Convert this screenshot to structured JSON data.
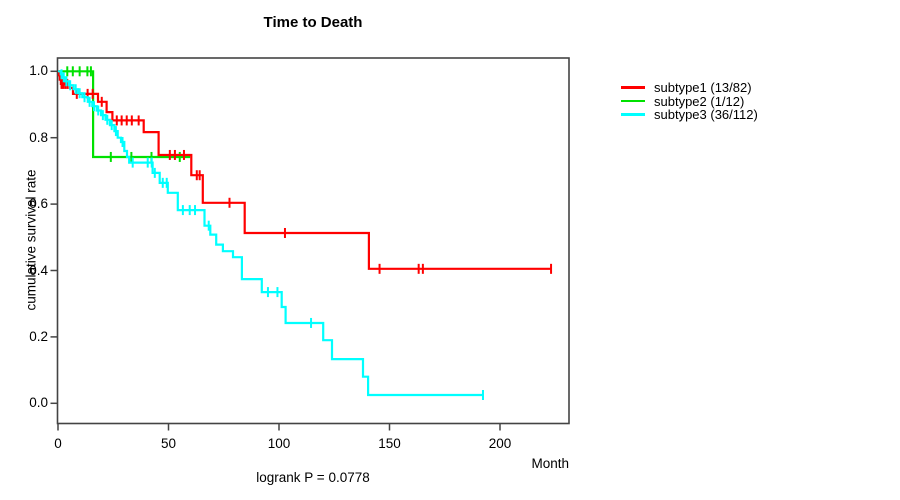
{
  "title": "Time to Death",
  "footer": "logrank P = 0.0778",
  "axes": {
    "x": {
      "label": "Month",
      "ticks": [
        "0",
        "50",
        "100",
        "150",
        "200"
      ]
    },
    "y": {
      "label": "cumulative survival rate",
      "ticks": [
        "1.0",
        "0.8",
        "0.6",
        "0.4",
        "0.2",
        "0.0"
      ]
    }
  },
  "legend": [
    {
      "label": "subtype1 (13/82)",
      "color": "#FF0000"
    },
    {
      "label": "subtype2 (1/12)",
      "color": "#00E100"
    },
    {
      "label": "subtype3 (36/112)",
      "color": "#00FFFF"
    }
  ],
  "frame_color": "#444444",
  "chart_data": {
    "type": "line",
    "subtype": "kaplan-meier-step",
    "title": "Time to Death",
    "xlabel": "Month",
    "ylabel": "cumulative survival rate",
    "xlim": [
      0,
      231
    ],
    "ylim": [
      0,
      1.04
    ],
    "x_ticks": [
      0,
      50,
      100,
      150,
      200
    ],
    "y_ticks": [
      1.0,
      0.8,
      0.6,
      0.4,
      0.2,
      0.0
    ],
    "grid": false,
    "legend_position": "right-outside",
    "series": [
      {
        "name": "subtype2 (1/12)",
        "color": "#00E100",
        "draw_order": 1,
        "steps": [
          [
            0,
            1.0
          ],
          [
            15.9,
            0.742
          ]
        ],
        "end": 59.8,
        "censor_ticks": [
          4.2,
          6.7,
          9.8,
          13.3,
          14.9,
          23.9,
          33.2,
          42.3,
          55.1
        ]
      },
      {
        "name": "subtype1 (13/82)",
        "color": "#FF0000",
        "draw_order": 2,
        "steps": [
          [
            0,
            1.0
          ],
          [
            0.4,
            0.988
          ],
          [
            0.8,
            0.975
          ],
          [
            1.3,
            0.962
          ],
          [
            5.3,
            0.95
          ],
          [
            6.8,
            0.932
          ],
          [
            18.1,
            0.908
          ],
          [
            22.0,
            0.877
          ],
          [
            24.6,
            0.852
          ],
          [
            38.8,
            0.817
          ],
          [
            45.5,
            0.748
          ],
          [
            60.3,
            0.687
          ],
          [
            65.5,
            0.604
          ],
          [
            84.5,
            0.513
          ],
          [
            140.7,
            0.405
          ]
        ],
        "end": 223.1,
        "censor_ticks": [
          1.6,
          2.4,
          3.3,
          4.2,
          8.5,
          13.4,
          15.7,
          19.8,
          26.6,
          28.8,
          31.1,
          33.4,
          36.5,
          50.6,
          52.9,
          57.0,
          62.8,
          64.1,
          77.6,
          102.7,
          145.5,
          163.2,
          165.1,
          223.1
        ]
      },
      {
        "name": "subtype3 (36/112)",
        "color": "#00FFFF",
        "draw_order": 3,
        "steps": [
          [
            0,
            1.0
          ],
          [
            1.2,
            0.991
          ],
          [
            2.2,
            0.982
          ],
          [
            3.4,
            0.97
          ],
          [
            5.0,
            0.958
          ],
          [
            7.0,
            0.946
          ],
          [
            9.0,
            0.934
          ],
          [
            11.0,
            0.922
          ],
          [
            13.5,
            0.908
          ],
          [
            15.5,
            0.895
          ],
          [
            17.5,
            0.882
          ],
          [
            19.5,
            0.868
          ],
          [
            21.5,
            0.854
          ],
          [
            23.5,
            0.838
          ],
          [
            25.5,
            0.82
          ],
          [
            27.0,
            0.8
          ],
          [
            28.5,
            0.787
          ],
          [
            30.0,
            0.76
          ],
          [
            31.2,
            0.742
          ],
          [
            32.2,
            0.725
          ],
          [
            42.8,
            0.694
          ],
          [
            46.0,
            0.664
          ],
          [
            49.7,
            0.634
          ],
          [
            54.2,
            0.582
          ],
          [
            66.3,
            0.535
          ],
          [
            68.9,
            0.508
          ],
          [
            71.6,
            0.478
          ],
          [
            74.6,
            0.458
          ],
          [
            79.2,
            0.44
          ],
          [
            83.2,
            0.374
          ],
          [
            92.2,
            0.335
          ],
          [
            101.2,
            0.29
          ],
          [
            103.0,
            0.242
          ],
          [
            120.0,
            0.19
          ],
          [
            124.0,
            0.133
          ],
          [
            138.0,
            0.08
          ],
          [
            140.3,
            0.025
          ]
        ],
        "end": 192.3,
        "censor_ticks": [
          1.6,
          2.6,
          3.8,
          5.5,
          8.0,
          9.8,
          12.0,
          14.3,
          16.3,
          18.2,
          20.3,
          22.3,
          24.3,
          26.2,
          29.2,
          33.8,
          40.6,
          42.4,
          43.8,
          47.4,
          49.2,
          56.5,
          59.6,
          62.0,
          68.2,
          95.0,
          99.3,
          114.5,
          192.3
        ]
      }
    ]
  }
}
